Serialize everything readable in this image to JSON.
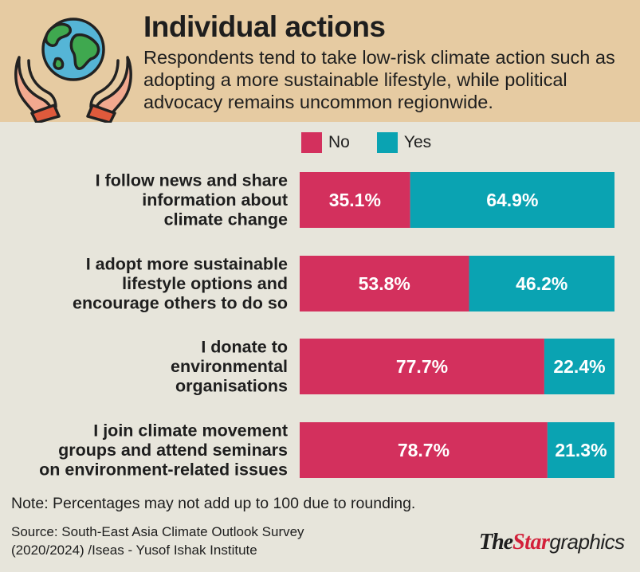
{
  "header": {
    "title": "Individual actions",
    "subtitle": "Respondents tend to take low-risk climate action such as adopting a more sustainable lifestyle, while political advocacy remains uncommon regionwide."
  },
  "icons": {
    "logo": "globe-in-hands-icon"
  },
  "legend": {
    "no_label": "No",
    "yes_label": "Yes"
  },
  "colors": {
    "no": "#d3305d",
    "yes": "#0aa3b2",
    "header_bg": "#e6cba2",
    "page_bg": "#e7e5db",
    "brand_red": "#d3203a"
  },
  "chart_data": {
    "type": "bar",
    "orientation": "horizontal",
    "stacked": true,
    "title": "Individual actions",
    "xlim": [
      0,
      100
    ],
    "categories": [
      [
        "I follow news and share",
        "information about",
        "climate change"
      ],
      [
        "I adopt more sustainable",
        "lifestyle options and",
        "encourage others to do so"
      ],
      [
        "I donate to",
        "environmental",
        "organisations"
      ],
      [
        "I join climate movement",
        "groups and attend seminars",
        "on environment-related issues"
      ]
    ],
    "series": [
      {
        "name": "No",
        "values": [
          35.1,
          53.8,
          77.7,
          78.7
        ],
        "labels": [
          "35.1%",
          "53.8%",
          "77.7%",
          "78.7%"
        ]
      },
      {
        "name": "Yes",
        "values": [
          64.9,
          46.2,
          22.4,
          21.3
        ],
        "labels": [
          "64.9%",
          "46.2%",
          "22.4%",
          "21.3%"
        ]
      }
    ]
  },
  "footer": {
    "note": "Note: Percentages may not add up to 100 due to rounding.",
    "source_line1": "Source: South-East Asia Climate Outlook Survey",
    "source_line2": "(2020/2024) /Iseas - Yusof Ishak Institute",
    "brand_the": "The",
    "brand_star": "Star",
    "brand_graphics": "graphics"
  }
}
